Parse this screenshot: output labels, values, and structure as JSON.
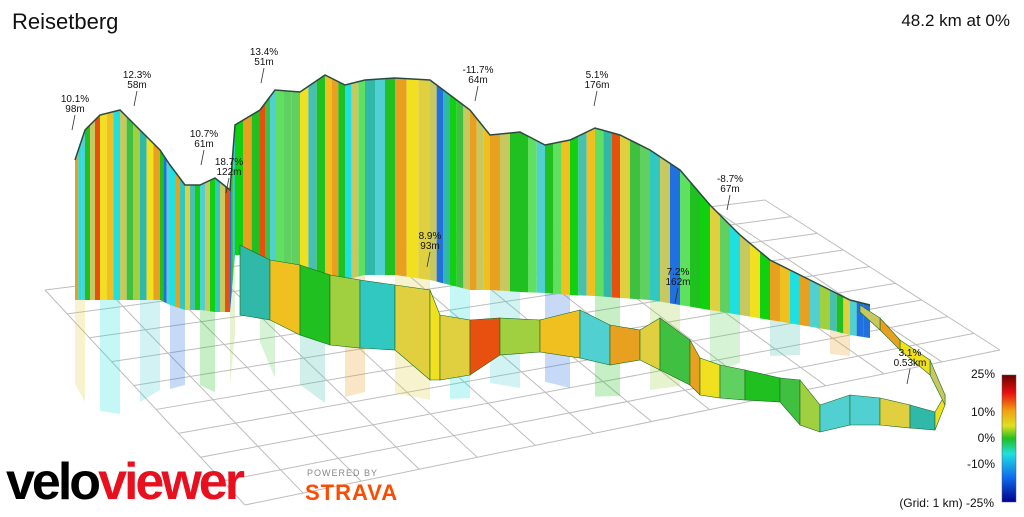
{
  "header": {
    "title": "Reisetberg",
    "summary": "48.2 km at 0%"
  },
  "legend": {
    "labels": [
      "25%",
      "10%",
      "0%",
      "-10%",
      "-25%"
    ],
    "grid_note": "(Grid: 1 km) -25%",
    "grid_note_text": "(Grid: 1 km)",
    "gradient_colors": [
      "#6b0000",
      "#e81010",
      "#f08010",
      "#f0e020",
      "#20c020",
      "#20e0e0",
      "#1070f0",
      "#0000a0"
    ]
  },
  "brand": {
    "velo_part1": "velo",
    "velo_part2": "viewer",
    "powered": "POWERED BY",
    "strava": "STRAVA"
  },
  "chart_data": {
    "type": "area",
    "title": "Reisetberg",
    "subtitle": "48.2 km at 0%",
    "annotations": [
      {
        "grade": "10.1%",
        "length": "98m"
      },
      {
        "grade": "12.3%",
        "length": "58m"
      },
      {
        "grade": "13.4%",
        "length": "51m"
      },
      {
        "grade": "10.7%",
        "length": "61m"
      },
      {
        "grade": "18.7%",
        "length": "122m"
      },
      {
        "grade": "-11.7%",
        "length": "64m"
      },
      {
        "grade": "5.1%",
        "length": "176m"
      },
      {
        "grade": "8.9%",
        "length": "93m"
      },
      {
        "grade": "-8.7%",
        "length": "67m"
      },
      {
        "grade": "7.2%",
        "length": "162m"
      },
      {
        "grade": "3.1%",
        "length": "0.53km"
      }
    ],
    "colorbar": {
      "min": -25,
      "max": 25,
      "ticks": [
        25,
        10,
        0,
        -10,
        -25
      ]
    },
    "grid": true
  }
}
